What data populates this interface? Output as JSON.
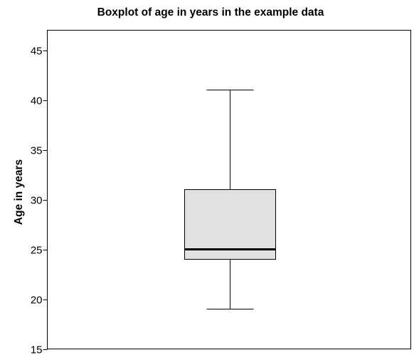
{
  "chart_data": {
    "type": "boxplot",
    "title": "Boxplot of age in years in the example data",
    "xlabel": "",
    "ylabel": "Age in years",
    "ylim": [
      15,
      47
    ],
    "yticks": [
      15,
      20,
      25,
      30,
      35,
      40,
      45
    ],
    "ytick_labels": [
      "15",
      "20",
      "25",
      "30",
      "35",
      "40",
      "45"
    ],
    "grid": false,
    "box": {
      "min": 19,
      "q1": 24,
      "median": 25,
      "q3": 31,
      "max": 41,
      "fill": "#e1e1e1",
      "stroke": "#000000"
    }
  }
}
